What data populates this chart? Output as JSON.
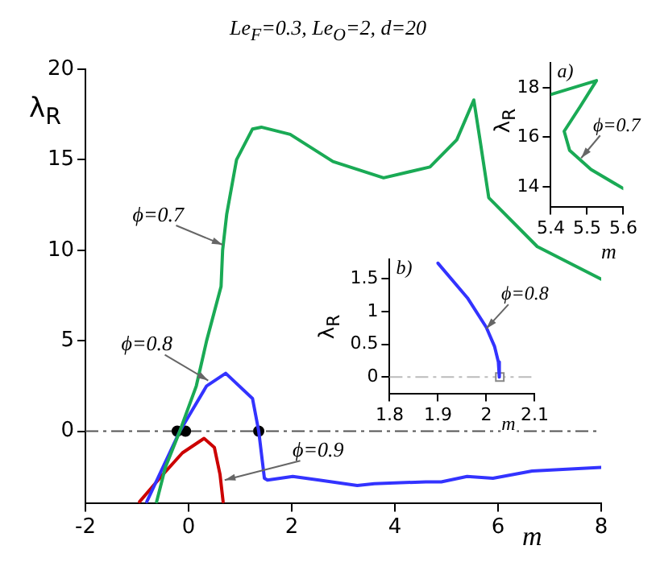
{
  "chart_data": [
    {
      "type": "line",
      "title": "Le$_{F}$=0.3, Le$_{O}$=2, d=20",
      "xlabel": "m",
      "ylabel": "λ$_{R}$",
      "xlim": [
        -2,
        8
      ],
      "xticks": [
        -2,
        0,
        2,
        4,
        6,
        8
      ],
      "ylim": [
        -4,
        20
      ],
      "yticks": [
        0,
        5,
        10,
        15,
        20
      ],
      "grid": false,
      "legend": false,
      "marker": "none",
      "ref_lines": [
        {
          "axis": "y",
          "value": 0,
          "color": "#555555",
          "line_style": "dashdot"
        }
      ],
      "annotations": [
        {
          "text": "ϕ=0.7",
          "x": 0.66,
          "y": 10.3
        },
        {
          "text": "ϕ=0.8",
          "x": 0.38,
          "y": 2.8
        },
        {
          "text": "ϕ=0.9",
          "x": 0.7,
          "y": -2.7
        }
      ],
      "series": [
        {
          "color": "#1aaa55",
          "x": [
            -0.62,
            -0.45,
            -0.17,
            0.15,
            0.35,
            0.63,
            0.66,
            0.74,
            0.93,
            1.24,
            1.41,
            1.97,
            2.8,
            3.78,
            4.68,
            5.2,
            5.53,
            5.65,
            5.82,
            6.76,
            8
          ],
          "values": [
            -3.9,
            -2,
            0,
            2.5,
            5,
            8,
            10,
            12,
            15,
            16.7,
            16.8,
            16.4,
            14.9,
            14.0,
            14.6,
            16.1,
            18.3,
            16.1,
            12.9,
            10.2,
            8.4
          ]
        },
        {
          "color": "#3333ff",
          "x": [
            -0.81,
            -0.17,
            0.35,
            0.72,
            1.24,
            1.36,
            1.47,
            1.53,
            2.02,
            2.53,
            3.27,
            3.6,
            4.6,
            4.9,
            5.4,
            5.9,
            6.66,
            8
          ],
          "values": [
            -3.9,
            0,
            2.5,
            3.2,
            1.8,
            0,
            -2.6,
            -2.7,
            -2.5,
            -2.7,
            -3.0,
            -2.9,
            -2.8,
            -2.8,
            -2.5,
            -2.6,
            -2.2,
            -2.0
          ]
        },
        {
          "color": "#cc0000",
          "x": [
            -0.95,
            -0.53,
            -0.12,
            0.3,
            0.5,
            0.61,
            0.67
          ],
          "values": [
            -3.9,
            -2.5,
            -1.2,
            -0.4,
            -0.9,
            -2.4,
            -3.9
          ]
        },
        {
          "type": "scatter",
          "marker": "circle",
          "color": "#000000",
          "x": [
            -0.22,
            -0.06,
            1.36
          ],
          "values": [
            0,
            0,
            0
          ]
        }
      ]
    },
    {
      "type": "line",
      "xlabel": "m",
      "ylabel": "λ$_{R}$",
      "xlim": [
        5.4,
        5.6
      ],
      "xticks": [
        5.4,
        5.5,
        5.6
      ],
      "ylim": [
        13.2,
        19
      ],
      "yticks": [
        14,
        16,
        18
      ],
      "grid": false,
      "legend": false,
      "marker": "none",
      "annotations": [
        "a)",
        {
          "text": "ϕ=0.7",
          "x": 5.484,
          "y": 15.16
        }
      ],
      "series": [
        {
          "color": "#1aaa55",
          "x": [
            5.4,
            5.526,
            5.481,
            5.437,
            5.452,
            5.511,
            5.6
          ],
          "values": [
            17.72,
            18.28,
            17.23,
            16.24,
            15.47,
            14.7,
            13.93
          ]
        }
      ]
    },
    {
      "type": "line",
      "xlabel": "m",
      "ylabel": "λ$_{R}$",
      "xlim": [
        1.8,
        2.1
      ],
      "xticks": [
        1.8,
        1.9,
        2,
        2.1
      ],
      "ylim": [
        -0.25,
        1.8
      ],
      "yticks": [
        0,
        0.5,
        1,
        1.5
      ],
      "grid": false,
      "legend": false,
      "marker": "none",
      "ref_lines": [
        {
          "axis": "y",
          "value": 0,
          "color": "#bbbbbb",
          "line_style": "dashdot"
        }
      ],
      "annotations": [
        "b)",
        {
          "text": "ϕ=0.8",
          "x": 2.0,
          "y": 0.74
        }
      ],
      "series": [
        {
          "color": "#3333ff",
          "x": [
            1.9,
            1.961,
            2.0,
            2.017,
            2.025,
            2.027
          ],
          "values": [
            1.74,
            1.21,
            0.76,
            0.47,
            0.23,
            0
          ]
        },
        {
          "type": "scatter",
          "marker": "square",
          "color": "#888888",
          "x": [
            2.028
          ],
          "values": [
            0
          ]
        }
      ]
    }
  ]
}
